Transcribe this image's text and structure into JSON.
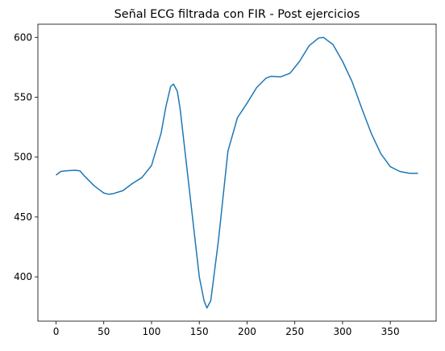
{
  "chart_data": {
    "type": "line",
    "title": "Señal ECG filtrada con FIR - Post ejercicios",
    "x": [
      0,
      5,
      10,
      20,
      25,
      30,
      40,
      50,
      55,
      60,
      70,
      80,
      90,
      100,
      110,
      115,
      120,
      123,
      127,
      130,
      140,
      150,
      155,
      158,
      162,
      170,
      180,
      190,
      200,
      210,
      220,
      225,
      235,
      245,
      255,
      265,
      275,
      280,
      290,
      300,
      310,
      320,
      330,
      340,
      350,
      360,
      370,
      379
    ],
    "values": [
      485,
      488,
      488.5,
      489,
      488.5,
      484,
      476,
      470,
      469,
      469.5,
      472,
      478,
      483,
      493,
      520,
      542,
      559,
      561,
      555,
      540,
      470,
      400,
      380,
      374,
      380,
      430,
      505,
      533,
      545,
      558,
      566,
      567.5,
      567,
      570,
      580,
      593,
      599.5,
      600,
      594,
      580,
      563,
      541,
      520,
      503,
      492,
      488,
      486.5,
      486.5
    ],
    "color": "#1f77b4",
    "xlim": [
      -19,
      398
    ],
    "xticks": [
      0,
      50,
      100,
      150,
      200,
      250,
      300,
      350
    ],
    "ylim": [
      363,
      611
    ],
    "yticks": [
      400,
      450,
      500,
      550,
      600
    ]
  }
}
